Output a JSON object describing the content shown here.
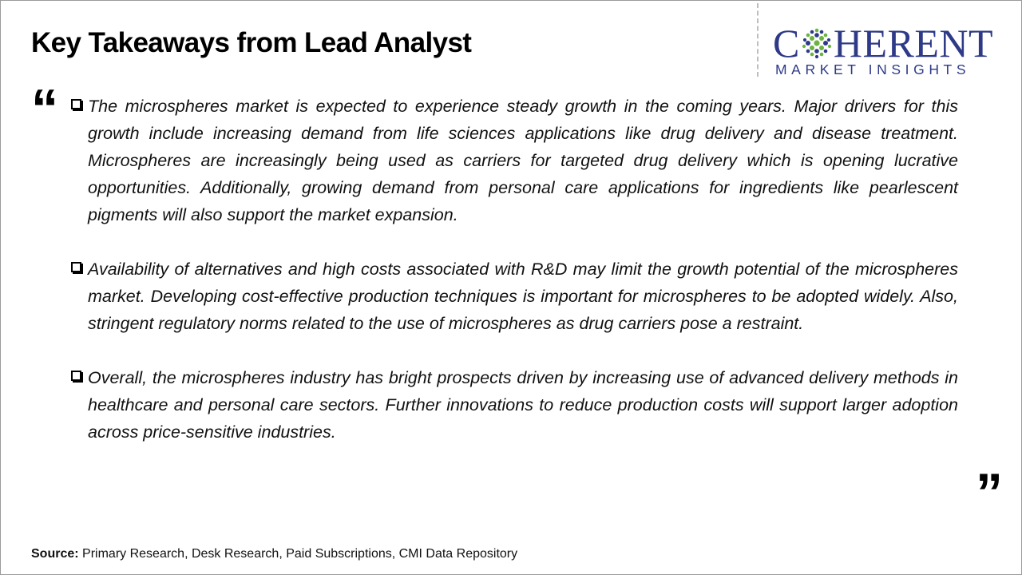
{
  "title": "Key Takeaways from Lead Analyst",
  "logo": {
    "brand_first": "C",
    "brand_rest": "HERENT",
    "tagline": "MARKET INSIGHTS"
  },
  "quotes": {
    "open": "“",
    "close": "”"
  },
  "bullets": [
    {
      "text": "The microspheres market is expected to experience steady growth in the coming years. Major drivers for this growth include increasing demand from life sciences applications like drug delivery and disease treatment. Microspheres are increasingly being used as carriers for targeted drug delivery which is opening lucrative opportunities. Additionally, growing demand from personal care applications for ingredients like pearlescent pigments will also support the market expansion."
    },
    {
      "text": "Availability of alternatives and high costs associated with R&D may limit the growth potential of the microspheres market. Developing cost-effective production techniques is important for microspheres to be adopted widely. Also, stringent regulatory norms related to the use of microspheres as drug carriers pose a restraint."
    },
    {
      "text": "Overall, the microspheres industry has bright prospects driven by increasing use of advanced delivery methods in healthcare and personal care sectors. Further innovations to reduce production costs will support larger adoption across price-sensitive industries."
    }
  ],
  "source": {
    "label": "Source:",
    "text": "Primary Research, Desk Research, Paid Subscriptions, CMI Data Repository"
  },
  "colors": {
    "brand": "#2e3a88",
    "mark_green": "#6cb33f",
    "mark_blue": "#2e3a88"
  }
}
